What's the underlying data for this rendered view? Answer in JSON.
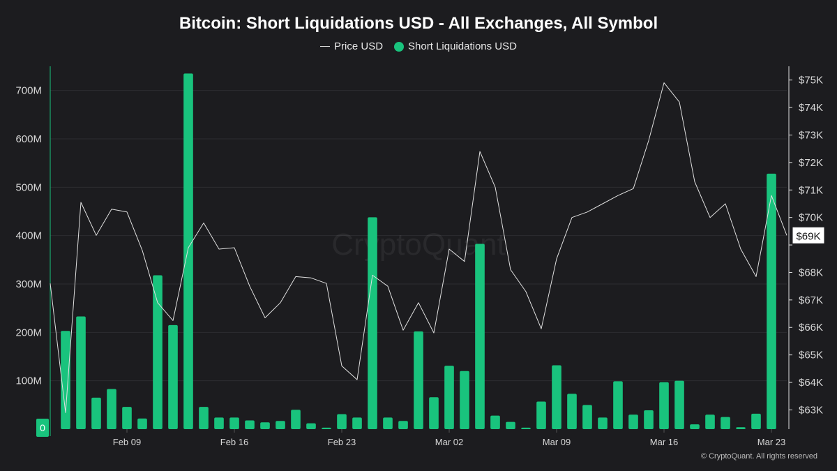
{
  "chart_data": {
    "type": "bar",
    "title": "Bitcoin: Short Liquidations USD - All Exchanges, All Symbol",
    "colors": {
      "bars": "#19c37d",
      "price_line": "#e0e0e0",
      "background": "#1c1c1f",
      "grid": "#2c2c30"
    },
    "x_ticks": [
      "Feb 09",
      "Feb 16",
      "Feb 23",
      "Mar 02",
      "Mar 09",
      "Mar 16",
      "Mar 23"
    ],
    "left_axis": {
      "ticks": [
        "0",
        "100M",
        "200M",
        "300M",
        "400M",
        "500M",
        "600M",
        "700M"
      ],
      "ylim": [
        0,
        750000000
      ]
    },
    "right_axis": {
      "ticks": [
        "$63K",
        "$64K",
        "$65K",
        "$66K",
        "$67K",
        "$68K",
        "$69K",
        "$70K",
        "$71K",
        "$72K",
        "$73K",
        "$74K",
        "$75K"
      ],
      "ylim": [
        62300,
        75500
      ],
      "current_label": "$69K"
    },
    "series": [
      {
        "name": "Short Liquidations USD",
        "type": "bar",
        "x": [
          "2026-02-05",
          "2026-02-06",
          "2026-02-07",
          "2026-02-08",
          "2026-02-09",
          "2026-02-10",
          "2026-02-11",
          "2026-02-12",
          "2026-02-13",
          "2026-02-14",
          "2026-02-15",
          "2026-02-16",
          "2026-02-17",
          "2026-02-18",
          "2026-02-19",
          "2026-02-20",
          "2026-02-21",
          "2026-02-22",
          "2026-02-23",
          "2026-02-24",
          "2026-02-25",
          "2026-02-26",
          "2026-02-27",
          "2026-02-28",
          "2026-03-01",
          "2026-03-02",
          "2026-03-03",
          "2026-03-04",
          "2026-03-05",
          "2026-03-06",
          "2026-03-07",
          "2026-03-08",
          "2026-03-09",
          "2026-03-10",
          "2026-03-11",
          "2026-03-12",
          "2026-03-13",
          "2026-03-14",
          "2026-03-15",
          "2026-03-16",
          "2026-03-17",
          "2026-03-18",
          "2026-03-19",
          "2026-03-20",
          "2026-03-21",
          "2026-03-22",
          "2026-03-23"
        ],
        "values": [
          203000000,
          233000000,
          65000000,
          83000000,
          46000000,
          22000000,
          318000000,
          215000000,
          735000000,
          46000000,
          24000000,
          24000000,
          18000000,
          14000000,
          17000000,
          40000000,
          12000000,
          3000000,
          31000000,
          24000000,
          438000000,
          24000000,
          17000000,
          202000000,
          66000000,
          131000000,
          120000000,
          383000000,
          28000000,
          15000000,
          3000000,
          57000000,
          132000000,
          73000000,
          50000000,
          24000000,
          99000000,
          30000000,
          39000000,
          97000000,
          100000000,
          10000000,
          30000000,
          25000000,
          4000000,
          32000000,
          528000000
        ]
      },
      {
        "name": "Price USD",
        "type": "line",
        "x": [
          "2026-02-04",
          "2026-02-05",
          "2026-02-06",
          "2026-02-07",
          "2026-02-08",
          "2026-02-09",
          "2026-02-10",
          "2026-02-11",
          "2026-02-12",
          "2026-02-13",
          "2026-02-14",
          "2026-02-15",
          "2026-02-16",
          "2026-02-17",
          "2026-02-18",
          "2026-02-19",
          "2026-02-20",
          "2026-02-21",
          "2026-02-22",
          "2026-02-23",
          "2026-02-24",
          "2026-02-25",
          "2026-02-26",
          "2026-02-27",
          "2026-02-28",
          "2026-03-01",
          "2026-03-02",
          "2026-03-03",
          "2026-03-04",
          "2026-03-05",
          "2026-03-06",
          "2026-03-07",
          "2026-03-08",
          "2026-03-09",
          "2026-03-10",
          "2026-03-11",
          "2026-03-12",
          "2026-03-13",
          "2026-03-14",
          "2026-03-15",
          "2026-03-16",
          "2026-03-17",
          "2026-03-18",
          "2026-03-19",
          "2026-03-20",
          "2026-03-21",
          "2026-03-22",
          "2026-03-23",
          "2026-03-24"
        ],
        "values": [
          67600,
          62900,
          70550,
          69350,
          70300,
          70200,
          68800,
          66900,
          66250,
          68900,
          69800,
          68850,
          68900,
          67500,
          66350,
          66900,
          67850,
          67800,
          67600,
          64600,
          64100,
          67900,
          67500,
          65900,
          66900,
          65800,
          68850,
          68400,
          72400,
          71100,
          68100,
          67300,
          65950,
          68500,
          70000,
          70200,
          70500,
          70800,
          71050,
          72800,
          74900,
          74200,
          71300,
          70000,
          70500,
          68850,
          67850,
          70800,
          69350
        ]
      }
    ]
  },
  "legend": {
    "price_label": "Price USD",
    "liq_label": "Short Liquidations USD"
  },
  "footer": "© CryptoQuant. All rights reserved",
  "watermark": "CryptoQuant"
}
